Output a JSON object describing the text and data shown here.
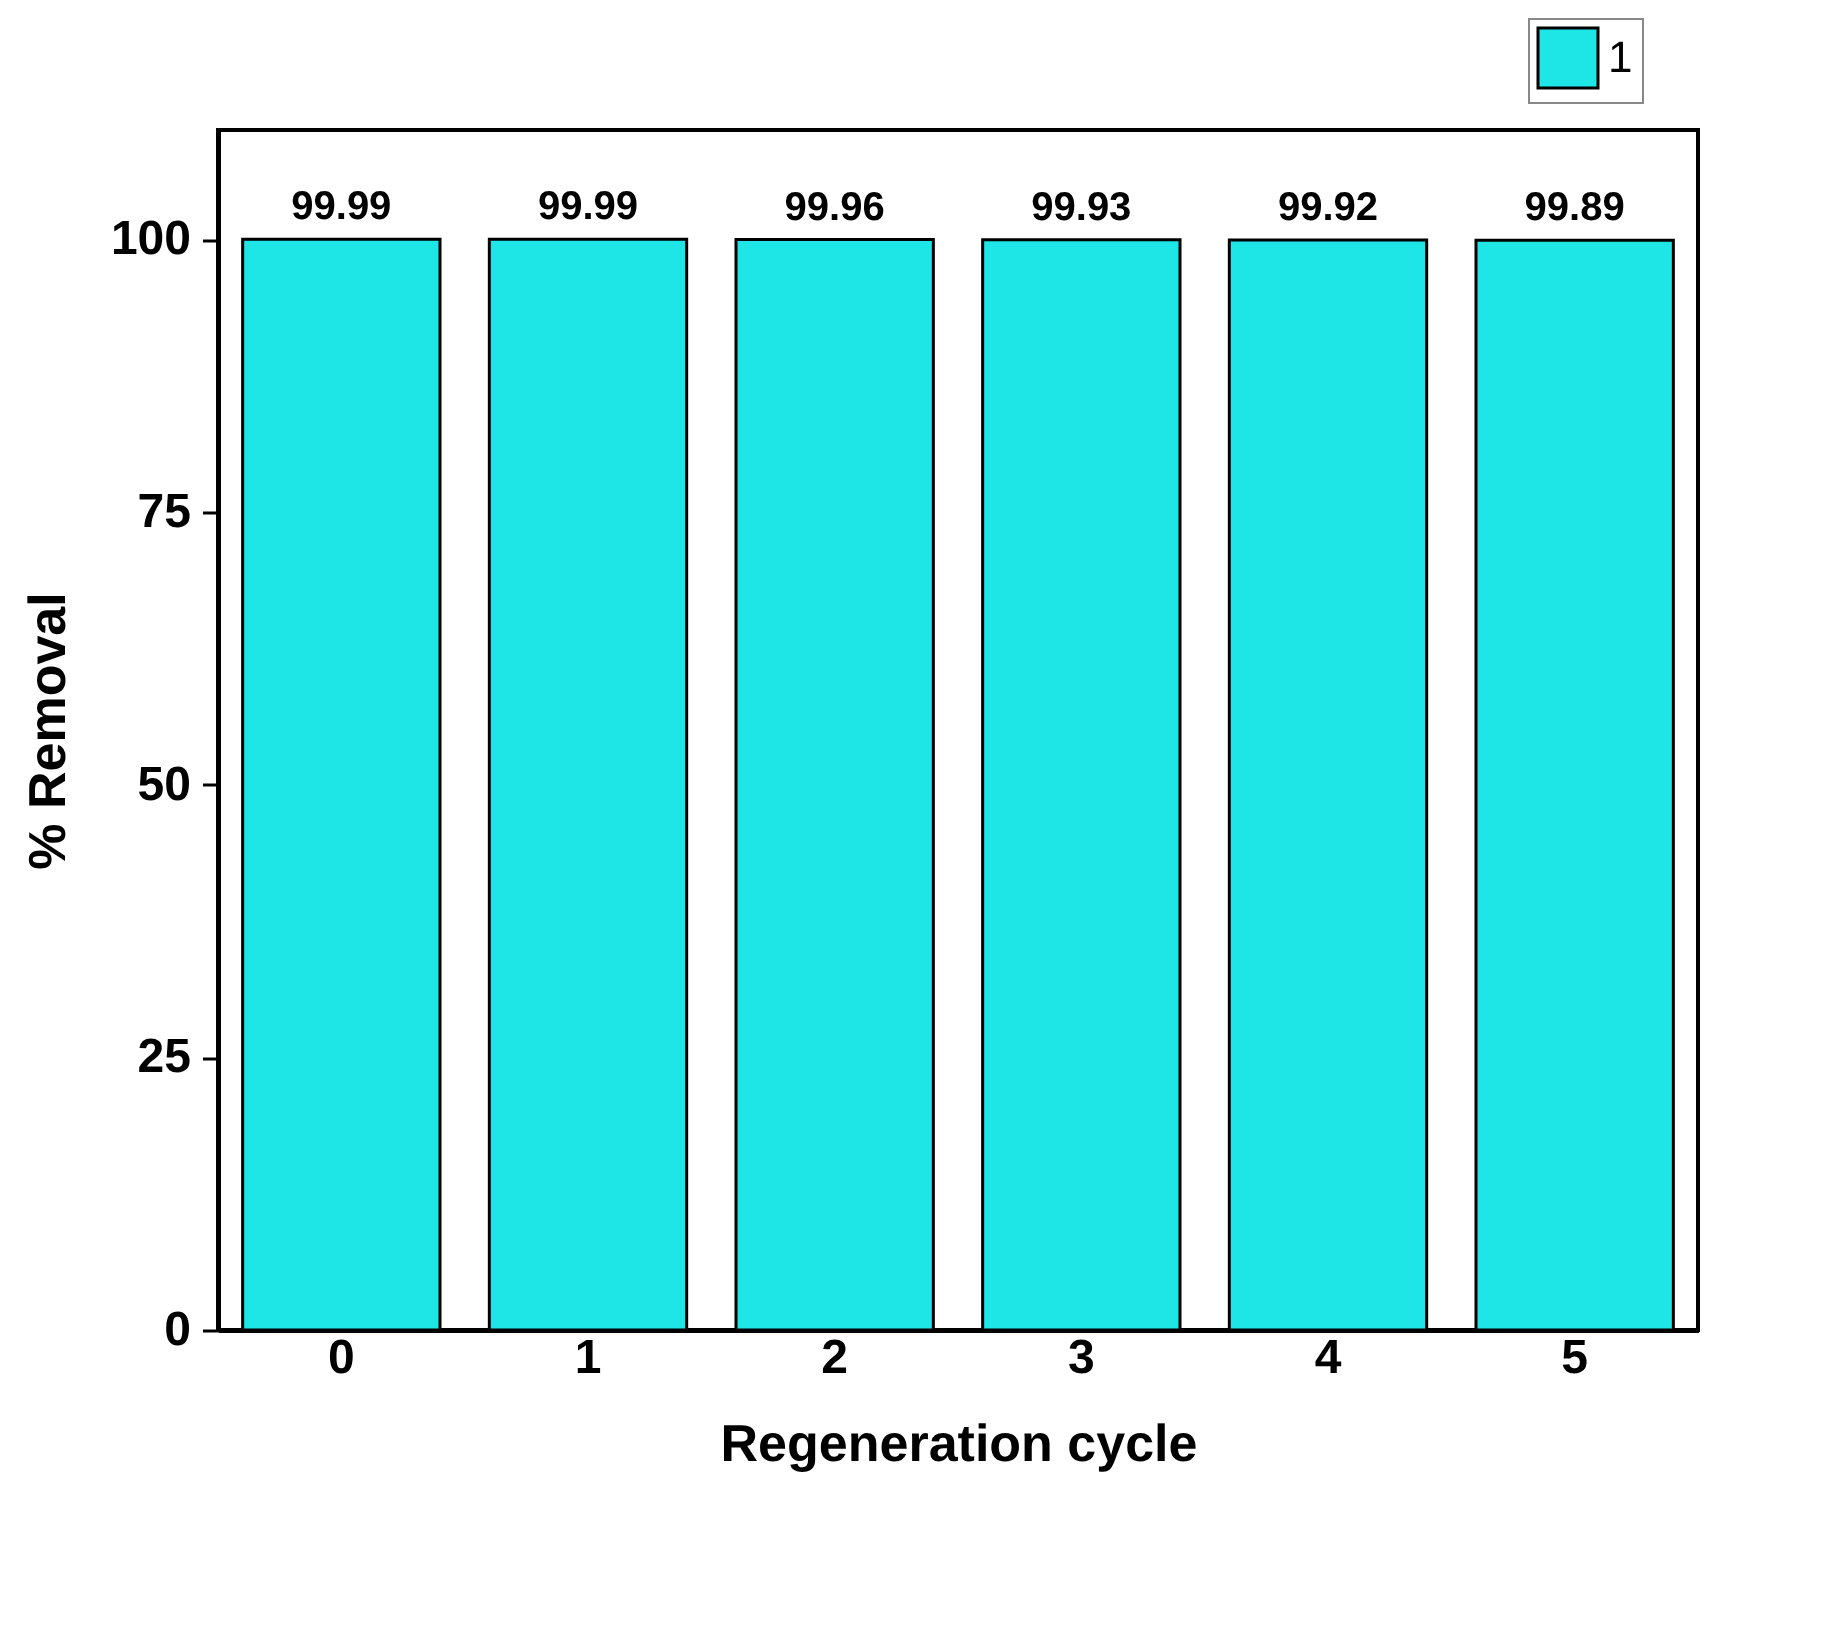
{
  "chart_data": {
    "type": "bar",
    "xlabel": "Regeneration cycle",
    "ylabel": "% Removal",
    "categories": [
      "0",
      "1",
      "2",
      "3",
      "4",
      "5"
    ],
    "series": [
      {
        "name": "1",
        "color": "#1ee6e6",
        "values": [
          99.99,
          99.99,
          99.96,
          99.93,
          99.92,
          99.89
        ]
      }
    ],
    "ylim": [
      0,
      110
    ],
    "yticks": [
      0,
      25,
      50,
      75,
      100
    ],
    "data_labels": true,
    "legend": "top right",
    "grid": false
  }
}
